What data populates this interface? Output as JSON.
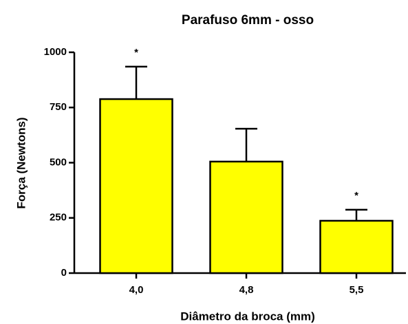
{
  "chart_data": {
    "type": "bar",
    "title": "Parafuso  6mm - osso",
    "x_label": "Diâmetro da broca (mm)",
    "y_label": "Força (Newtons)",
    "categories": [
      "4,0",
      "4,8",
      "5,5"
    ],
    "values": [
      788,
      505,
      237
    ],
    "errors": [
      147,
      149,
      50
    ],
    "annotations": [
      "*",
      null,
      "*"
    ],
    "color": "#ffff00",
    "ylim": [
      0,
      1000
    ],
    "yticks": [
      0,
      250,
      500,
      750,
      1000
    ]
  }
}
